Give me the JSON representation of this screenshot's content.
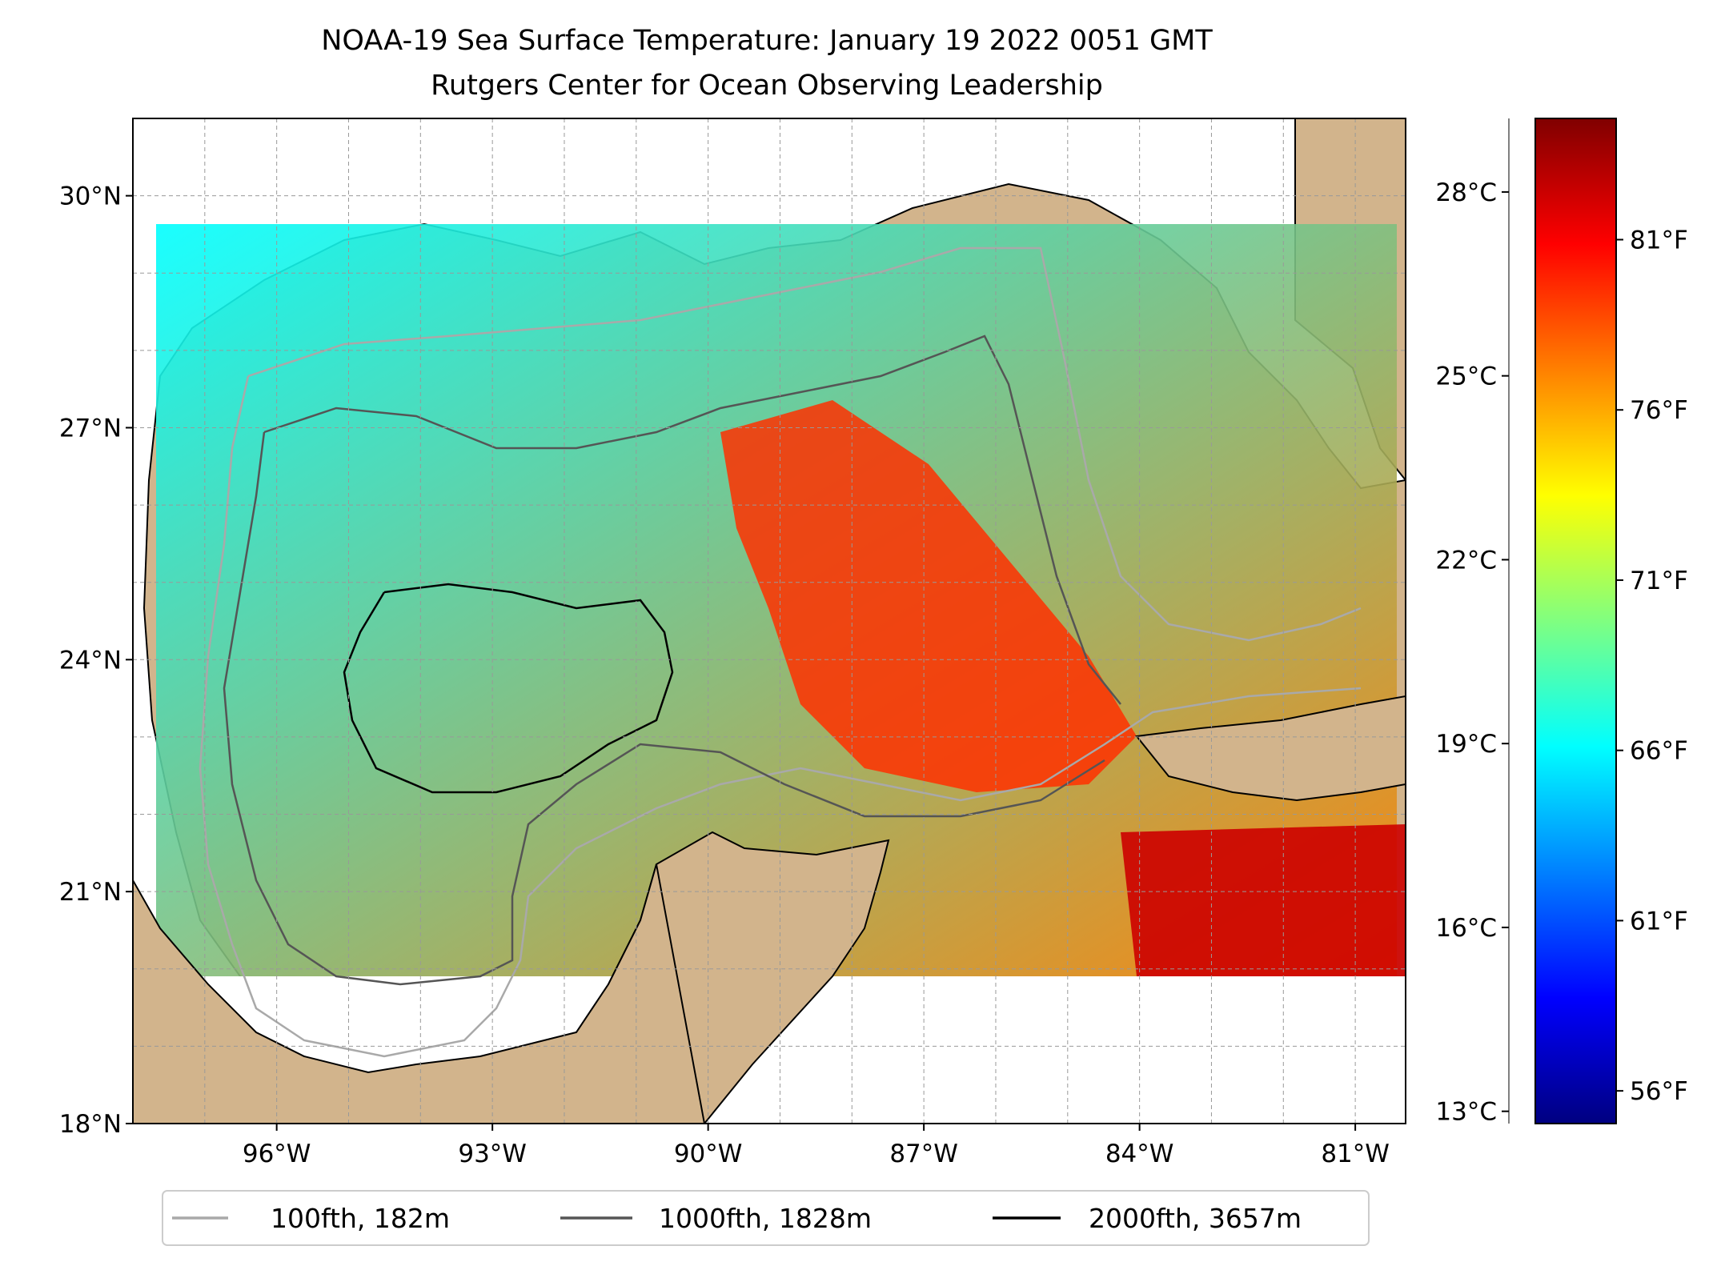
{
  "title": "NOAA-19 Sea Surface Temperature: January 19 2022 0051 GMT",
  "subtitle": "Rutgers Center for Ocean Observing Leadership",
  "map": {
    "lon_range": [
      -98.0,
      -80.3
    ],
    "lat_range": [
      18.0,
      31.0
    ],
    "lat_ticks": [
      {
        "value": 30,
        "label": "30°N"
      },
      {
        "value": 27,
        "label": "27°N"
      },
      {
        "value": 24,
        "label": "24°N"
      },
      {
        "value": 21,
        "label": "21°N"
      },
      {
        "value": 18,
        "label": "18°N"
      }
    ],
    "lon_ticks": [
      {
        "value": -96,
        "label": "96°W"
      },
      {
        "value": -93,
        "label": "93°W"
      },
      {
        "value": -90,
        "label": "90°W"
      },
      {
        "value": -87,
        "label": "87°W"
      },
      {
        "value": -84,
        "label": "84°W"
      },
      {
        "value": -81,
        "label": "81°W"
      }
    ],
    "grid": true,
    "land_color": "#d2b48c",
    "no_data_color": "#ffffff"
  },
  "colorbar": {
    "colormap": "jet",
    "celsius_range": [
      12.8,
      29.2
    ],
    "celsius_ticks": [
      {
        "value": 28,
        "label": "28°C"
      },
      {
        "value": 25,
        "label": "25°C"
      },
      {
        "value": 22,
        "label": "22°C"
      },
      {
        "value": 19,
        "label": "19°C"
      },
      {
        "value": 16,
        "label": "16°C"
      },
      {
        "value": 13,
        "label": "13°C"
      }
    ],
    "fahrenheit_ticks": [
      {
        "value": 81,
        "label": "81°F"
      },
      {
        "value": 76,
        "label": "76°F"
      },
      {
        "value": 71,
        "label": "71°F"
      },
      {
        "value": 66,
        "label": "66°F"
      },
      {
        "value": 61,
        "label": "61°F"
      },
      {
        "value": 56,
        "label": "56°F"
      }
    ],
    "colors": [
      "#000080",
      "#0000ff",
      "#0080ff",
      "#00ffff",
      "#80ff80",
      "#ffff00",
      "#ff8000",
      "#ff0000",
      "#800000"
    ]
  },
  "legend": {
    "items": [
      {
        "label": "100fth, 182m",
        "color": "#a9a9a9"
      },
      {
        "label": "1000fth, 1828m",
        "color": "#555555"
      },
      {
        "label": "2000fth, 3657m",
        "color": "#000000"
      }
    ]
  }
}
